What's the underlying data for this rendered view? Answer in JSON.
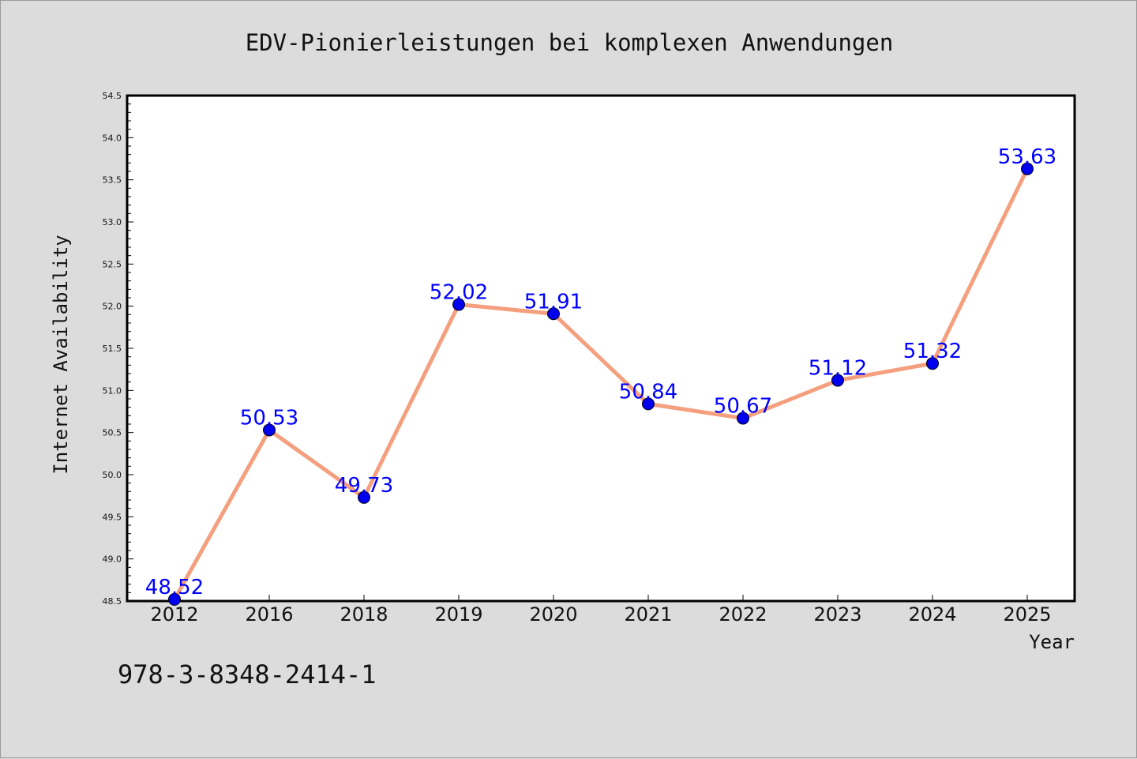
{
  "chart_data": {
    "type": "line",
    "title": "EDV-Pionierleistungen bei komplexen Anwendungen",
    "xlabel": "Year",
    "ylabel": "Internet Availability",
    "categories": [
      "2012",
      "2016",
      "2018",
      "2019",
      "2020",
      "2021",
      "2022",
      "2023",
      "2024",
      "2025"
    ],
    "series": [
      {
        "values": [
          48.52,
          50.53,
          49.73,
          52.02,
          51.91,
          50.84,
          50.67,
          51.12,
          51.32,
          53.63
        ],
        "data_labels": [
          "48.52",
          "50.53",
          "49.73",
          "52.02",
          "51.91",
          "50.84",
          "50.67",
          "51.12",
          "51.32",
          "53.63"
        ],
        "line_color": "#f4a07f",
        "marker_color": "#0000ee"
      }
    ],
    "ylim": [
      48.5,
      54.5
    ],
    "yticks": [
      "48.5",
      "49.0",
      "49.5",
      "50.0",
      "50.5",
      "51.0",
      "51.5",
      "52.0",
      "52.5",
      "53.0",
      "53.5",
      "54.0",
      "54.5"
    ],
    "grid": false,
    "legend": "none",
    "colors": {
      "background": "#dcdcdc",
      "plot_background": "#ffffff",
      "data_label": "#0000ff"
    }
  },
  "footer": {
    "isbn": "978-3-8348-2414-1"
  }
}
